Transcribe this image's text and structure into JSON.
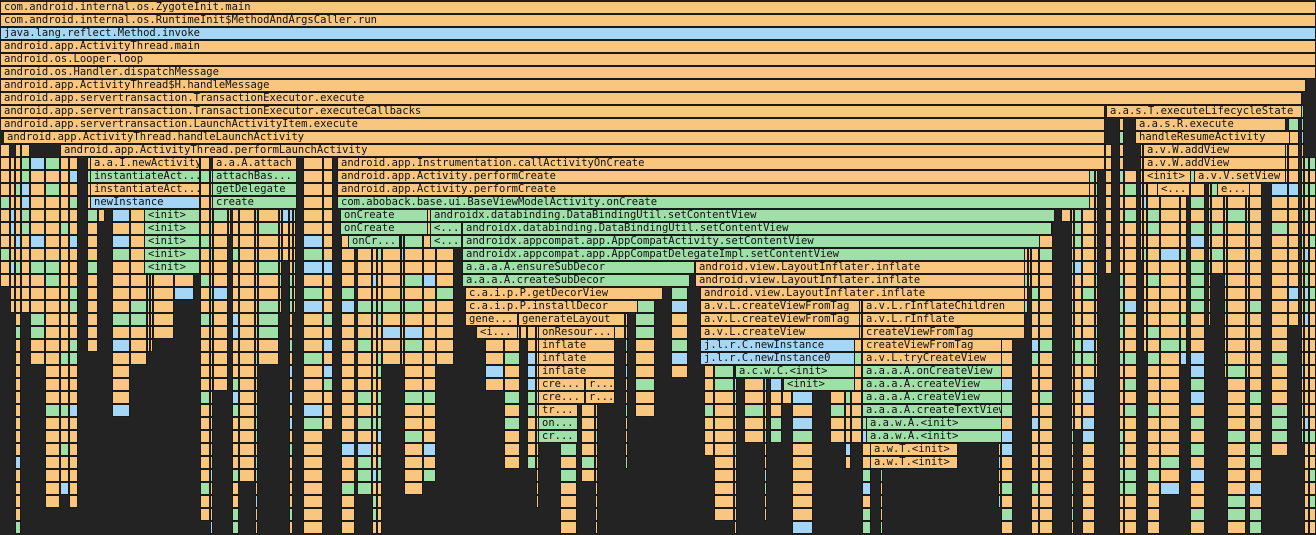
{
  "colors": {
    "orange": "#f9c67f",
    "green": "#9fe0a8",
    "blue": "#a6d6f6",
    "background": "#232323"
  },
  "frames": [
    {
      "label": "com.android.internal.os.ZygoteInit.main",
      "kind": "orange"
    },
    {
      "label": "com.android.internal.os.RuntimeInit$MethodAndArgsCaller.run",
      "kind": "orange"
    },
    {
      "label": "java.lang.reflect.Method.invoke",
      "kind": "blue"
    },
    {
      "label": "android.app.ActivityThread.main",
      "kind": "orange"
    },
    {
      "label": "android.os.Looper.loop",
      "kind": "orange"
    },
    {
      "label": "android.os.Handler.dispatchMessage",
      "kind": "orange"
    },
    {
      "label": "android.app.ActivityThread$H.handleMessage",
      "kind": "orange"
    },
    {
      "label": "android.app.servertransaction.TransactionExecutor.execute",
      "kind": "orange"
    },
    {
      "label": "android.app.servertransaction.TransactionExecutor.executeCallbacks",
      "kind": "orange"
    },
    {
      "label": "a.a.s.T.executeLifecycleState",
      "kind": "orange"
    },
    {
      "label": "android.app.servertransaction.LaunchActivityItem.execute",
      "kind": "orange"
    },
    {
      "label": "a.a.s.R.execute",
      "kind": "orange"
    },
    {
      "label": "android.app.ActivityThread.handleLaunchActivity",
      "kind": "orange"
    },
    {
      "label": "handleResumeActivity",
      "kind": "orange"
    },
    {
      "label": "android.app.ActivityThread.performLaunchActivity",
      "kind": "orange"
    },
    {
      "label": "a.v.W.addView",
      "kind": "orange"
    },
    {
      "label": "a.a.I.newActivity",
      "kind": "orange"
    },
    {
      "label": "a.a.A.attach",
      "kind": "orange"
    },
    {
      "label": "android.app.Instrumentation.callActivityOnCreate",
      "kind": "orange"
    },
    {
      "label": "a.v.W.addView",
      "kind": "orange"
    },
    {
      "label": "instantiateAct...",
      "kind": "green"
    },
    {
      "label": "attachBas...",
      "kind": "green"
    },
    {
      "label": "android.app.Activity.performCreate",
      "kind": "orange"
    },
    {
      "label": "<init>",
      "kind": "orange"
    },
    {
      "label": "a.v.V.setView",
      "kind": "orange"
    },
    {
      "label": "instantiateAct...",
      "kind": "orange"
    },
    {
      "label": "getDelegate",
      "kind": "green"
    },
    {
      "label": "android.app.Activity.performCreate",
      "kind": "orange"
    },
    {
      "label": "<...",
      "kind": "orange"
    },
    {
      "label": "e...",
      "kind": "orange"
    },
    {
      "label": "newInstance",
      "kind": "blue"
    },
    {
      "label": "create",
      "kind": "green"
    },
    {
      "label": "com.aboback.base.ui.BaseViewModelActivity.onCreate",
      "kind": "green"
    },
    {
      "label": "<init>",
      "kind": "green"
    },
    {
      "label": "onCreate",
      "kind": "green"
    },
    {
      "label": "androidx.databinding.DataBindingUtil.setContentView",
      "kind": "green"
    },
    {
      "label": "<init>",
      "kind": "green"
    },
    {
      "label": "onCreate",
      "kind": "green"
    },
    {
      "label": "<...",
      "kind": "green"
    },
    {
      "label": "androidx.databinding.DataBindingUtil.setContentView",
      "kind": "green"
    },
    {
      "label": "<init>",
      "kind": "green"
    },
    {
      "label": "onCr...",
      "kind": "green"
    },
    {
      "label": "<...",
      "kind": "green"
    },
    {
      "label": "androidx.appcompat.app.AppCompatActivity.setContentView",
      "kind": "green"
    },
    {
      "label": "<init>",
      "kind": "green"
    },
    {
      "label": "androidx.appcompat.app.AppCompatDelegateImpl.setContentView",
      "kind": "green"
    },
    {
      "label": "<init>",
      "kind": "green"
    },
    {
      "label": "a.a.a.A.ensureSubDecor",
      "kind": "green"
    },
    {
      "label": "android.view.LayoutInflater.inflate",
      "kind": "orange"
    },
    {
      "label": "a.a.a.A.createSubDecor",
      "kind": "green"
    },
    {
      "label": "android.view.LayoutInflater.inflate",
      "kind": "orange"
    },
    {
      "label": "c.a.i.p.P.getDecorView",
      "kind": "orange"
    },
    {
      "label": "android.view.LayoutInflater.inflate",
      "kind": "orange"
    },
    {
      "label": "c.a.i.p.P.installDecor",
      "kind": "orange"
    },
    {
      "label": "a.v.L.createViewFromTag",
      "kind": "orange"
    },
    {
      "label": "a.v.L.rInflateChildren",
      "kind": "orange"
    },
    {
      "label": "gene...",
      "kind": "orange"
    },
    {
      "label": "generateLayout",
      "kind": "orange"
    },
    {
      "label": "a.v.L.createViewFromTag",
      "kind": "orange"
    },
    {
      "label": "a.v.L.rInflate",
      "kind": "orange"
    },
    {
      "label": "<i...",
      "kind": "orange"
    },
    {
      "label": "onResour...",
      "kind": "orange"
    },
    {
      "label": "a.v.L.createView",
      "kind": "orange"
    },
    {
      "label": "createViewFromTag",
      "kind": "orange"
    },
    {
      "label": "inflate",
      "kind": "orange"
    },
    {
      "label": "j.l.r.C.newInstance",
      "kind": "blue"
    },
    {
      "label": "createViewFromTag",
      "kind": "orange"
    },
    {
      "label": "inflate",
      "kind": "orange"
    },
    {
      "label": "j.l.r.C.newInstance0",
      "kind": "blue"
    },
    {
      "label": "a.v.L.tryCreateView",
      "kind": "orange"
    },
    {
      "label": "inflate",
      "kind": "orange"
    },
    {
      "label": "a.c.w.C.<init>",
      "kind": "green"
    },
    {
      "label": "a.a.a.A.onCreateView",
      "kind": "green"
    },
    {
      "label": "cre...",
      "kind": "orange"
    },
    {
      "label": "r...",
      "kind": "orange"
    },
    {
      "label": "<init>",
      "kind": "green"
    },
    {
      "label": "a.a.a.A.createView",
      "kind": "green"
    },
    {
      "label": "cre...",
      "kind": "orange"
    },
    {
      "label": "r...",
      "kind": "orange"
    },
    {
      "label": "a.a.a.A.createView",
      "kind": "green"
    },
    {
      "label": "tr...",
      "kind": "orange"
    },
    {
      "label": "a.a.a.A.createTextView",
      "kind": "green"
    },
    {
      "label": "on...",
      "kind": "green"
    },
    {
      "label": "a.a.w.A.<init>",
      "kind": "green"
    },
    {
      "label": "cr...",
      "kind": "green"
    },
    {
      "label": "a.a.w.A.<init>",
      "kind": "green"
    },
    {
      "label": "a.w.T.<init>",
      "kind": "orange"
    },
    {
      "label": "a.w.T.<init>",
      "kind": "orange"
    }
  ]
}
